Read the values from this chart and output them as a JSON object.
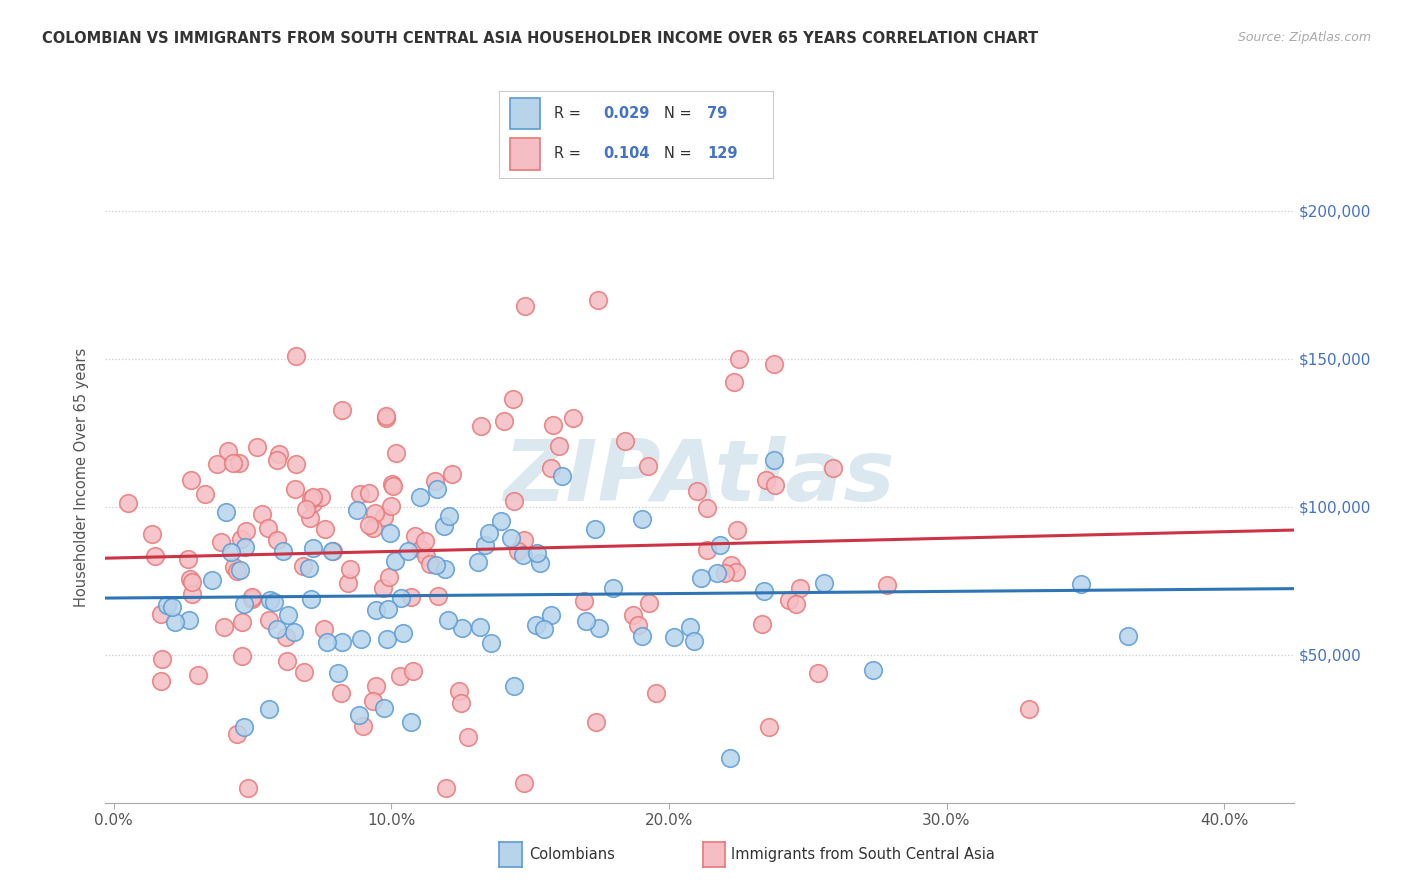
{
  "title": "COLOMBIAN VS IMMIGRANTS FROM SOUTH CENTRAL ASIA HOUSEHOLDER INCOME OVER 65 YEARS CORRELATION CHART",
  "source": "Source: ZipAtlas.com",
  "ylabel": "Householder Income Over 65 years",
  "ylim": [
    0,
    220000
  ],
  "xlim": [
    -0.003,
    0.425
  ],
  "yticks": [
    0,
    50000,
    100000,
    150000,
    200000
  ],
  "xticks": [
    0.0,
    0.1,
    0.2,
    0.3,
    0.4
  ],
  "xtick_labels": [
    "0.0%",
    "10.0%",
    "20.0%",
    "30.0%",
    "40.0%"
  ],
  "colombians_R": 0.029,
  "colombians_N": 79,
  "asia_R": 0.104,
  "asia_N": 129,
  "colombian_face": "#b8d4ea",
  "colombian_edge": "#5b9bd5",
  "asia_face": "#f4bec4",
  "asia_edge": "#e87878",
  "trend_colombian": "#2e75b6",
  "trend_asia": "#cc3344",
  "watermark_color": "#dce8f0",
  "background": "#ffffff",
  "grid_color": "#cccccc",
  "title_color": "#333333",
  "source_color": "#aaaaaa",
  "axis_label_color": "#555555",
  "right_tick_color": "#4472c4",
  "legend_border": "#cccccc"
}
